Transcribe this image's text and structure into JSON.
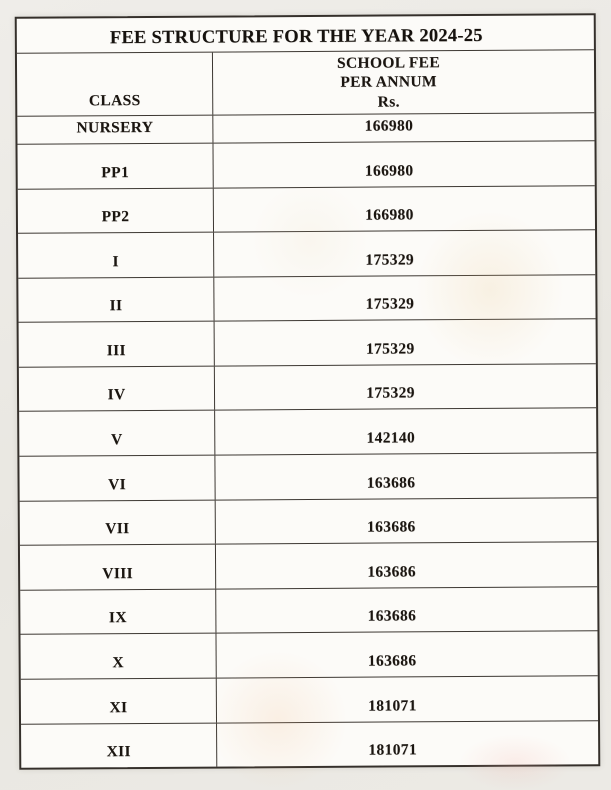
{
  "document": {
    "kind": "scanned fee structure table",
    "table": {
      "title": "FEE STRUCTURE FOR THE YEAR 2024-25",
      "header": {
        "class_label": "CLASS",
        "fee_line1": "SCHOOL FEE",
        "fee_line2": "PER ANNUM",
        "fee_line3": "Rs."
      },
      "rows": [
        {
          "class": "NURSERY",
          "fee": "166980"
        },
        {
          "class": "PP1",
          "fee": "166980"
        },
        {
          "class": "PP2",
          "fee": "166980"
        },
        {
          "class": "I",
          "fee": "175329"
        },
        {
          "class": "II",
          "fee": "175329"
        },
        {
          "class": "III",
          "fee": "175329"
        },
        {
          "class": "IV",
          "fee": "175329"
        },
        {
          "class": "V",
          "fee": "142140"
        },
        {
          "class": "VI",
          "fee": "163686"
        },
        {
          "class": "VII",
          "fee": "163686"
        },
        {
          "class": "VIII",
          "fee": "163686"
        },
        {
          "class": "IX",
          "fee": "163686"
        },
        {
          "class": "X",
          "fee": "163686"
        },
        {
          "class": "XI",
          "fee": "181071"
        },
        {
          "class": "XII",
          "fee": "181071"
        }
      ]
    },
    "colors": {
      "paper_background": "#eceae5",
      "cell_background": "#fcfbf8",
      "ink": "#1b1611",
      "border": "#3c3732"
    }
  }
}
